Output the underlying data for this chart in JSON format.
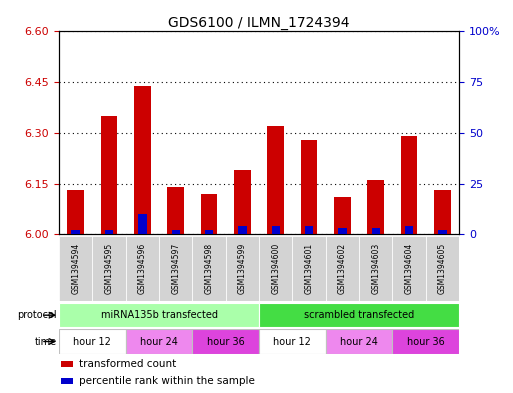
{
  "title": "GDS6100 / ILMN_1724394",
  "samples": [
    "GSM1394594",
    "GSM1394595",
    "GSM1394596",
    "GSM1394597",
    "GSM1394598",
    "GSM1394599",
    "GSM1394600",
    "GSM1394601",
    "GSM1394602",
    "GSM1394603",
    "GSM1394604",
    "GSM1394605"
  ],
  "red_values": [
    6.13,
    6.35,
    6.44,
    6.14,
    6.12,
    6.19,
    6.32,
    6.28,
    6.11,
    6.16,
    6.29,
    6.13
  ],
  "blue_pct": [
    2,
    2,
    10,
    2,
    2,
    4,
    4,
    4,
    3,
    3,
    4,
    2
  ],
  "ylim_left": [
    6.0,
    6.6
  ],
  "yticks_left": [
    6.0,
    6.15,
    6.3,
    6.45,
    6.6
  ],
  "ylim_right": [
    0,
    100
  ],
  "yticks_right": [
    0,
    25,
    50,
    75,
    100
  ],
  "ytick_labels_right": [
    "0",
    "25",
    "50",
    "75",
    "100%"
  ],
  "base_value": 6.0,
  "left_tick_color": "#cc0000",
  "right_tick_color": "#0000cc",
  "blue_bar_color": "#0000cc",
  "red_bar_color": "#cc0000",
  "protocol_groups": [
    {
      "label": "miRNA135b transfected",
      "start": 0,
      "end": 6,
      "color": "#aaffaa"
    },
    {
      "label": "scrambled transfected",
      "start": 6,
      "end": 12,
      "color": "#44dd44"
    }
  ],
  "time_groups": [
    {
      "label": "hour 12",
      "start": 0,
      "end": 2,
      "color": "#ffffff"
    },
    {
      "label": "hour 24",
      "start": 2,
      "end": 4,
      "color": "#ee88ee"
    },
    {
      "label": "hour 36",
      "start": 4,
      "end": 6,
      "color": "#dd44dd"
    },
    {
      "label": "hour 12",
      "start": 6,
      "end": 8,
      "color": "#ffffff"
    },
    {
      "label": "hour 24",
      "start": 8,
      "end": 10,
      "color": "#ee88ee"
    },
    {
      "label": "hour 36",
      "start": 10,
      "end": 12,
      "color": "#dd44dd"
    }
  ],
  "legend_items": [
    {
      "label": "transformed count",
      "color": "#cc0000"
    },
    {
      "label": "percentile rank within the sample",
      "color": "#0000cc"
    }
  ],
  "bar_width": 0.5,
  "blue_bar_width": 0.25,
  "title_fontsize": 10,
  "sample_fontsize": 5.5,
  "row_fontsize": 7,
  "legend_fontsize": 7.5
}
